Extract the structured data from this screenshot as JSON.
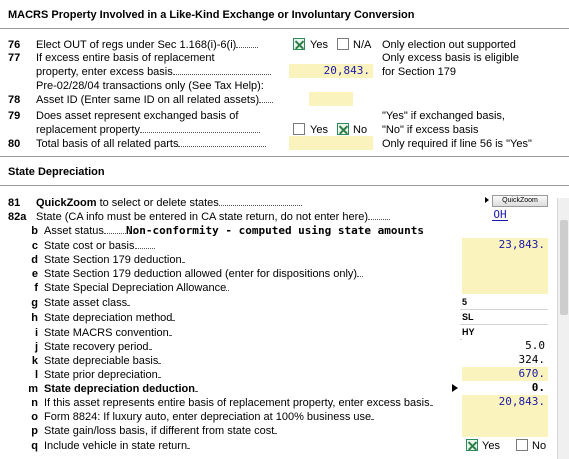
{
  "section1": {
    "title": "MACRS Property Involved in a Like-Kind Exchange or Involuntary Conversion",
    "rows": [
      {
        "num": "76",
        "label": "Elect OUT of regs under Sec 1.168(i)-6(i)",
        "yes": "Yes",
        "na": "N/A",
        "note": "Only election out supported"
      },
      {
        "num": "77",
        "label1": "If excess entire basis of replacement",
        "label2": "property, enter excess basis",
        "value": "20,843.",
        "note1": "Only excess basis is eligible",
        "note2": "for Section 179"
      },
      {
        "label": "Pre-02/28/04 transactions only (See Tax Help):"
      },
      {
        "num": "78",
        "label": "Asset ID (Enter same ID on all related assets)",
        "value": ""
      },
      {
        "num": "79",
        "label1": "Does asset represent exchanged basis of",
        "label2": "replacement property",
        "yes": "Yes",
        "no": "No",
        "note1": "\"Yes\" if exchanged basis,",
        "note2": "\"No\" if excess basis"
      },
      {
        "num": "80",
        "label": "Total basis of all related parts",
        "value": "",
        "note": "Only required if line 56 is \"Yes\""
      }
    ]
  },
  "section2": {
    "title": "State Depreciation",
    "quickzoom": {
      "num": "81",
      "label_bold": "QuickZoom",
      "label_rest": " to select or delete states",
      "button": "QuickZoom"
    },
    "state_row": {
      "num": "82a",
      "label": "State (CA info must be entered in CA state return, do not enter here)",
      "value": "OH"
    },
    "b_row": {
      "letter": "b",
      "label": "Asset status",
      "value": "Non-conformity - computed using state amounts"
    },
    "rows": [
      {
        "letter": "c",
        "label": "State cost or basis",
        "value": "23,843.",
        "style": "blue"
      },
      {
        "letter": "d",
        "label": "State Section 179 deduction",
        "value": "",
        "style": "yellow"
      },
      {
        "letter": "e",
        "label": "State Section 179 deduction allowed (enter for dispositions only)",
        "value": "",
        "style": "yellow"
      },
      {
        "letter": "f",
        "label": "State Special Depreciation Allowance",
        "value": "",
        "style": "yellow"
      },
      {
        "letter": "g",
        "label": "State asset class",
        "value": "5",
        "style": "left"
      },
      {
        "letter": "h",
        "label": "State depreciation method",
        "value": "SL",
        "style": "left"
      },
      {
        "letter": "i",
        "label": "State MACRS convention",
        "value": "HY",
        "style": "left"
      },
      {
        "letter": "j",
        "label": "State recovery period",
        "value": "5.0",
        "style": "white"
      },
      {
        "letter": "k",
        "label": "State depreciable basis",
        "value": "324.",
        "style": "white"
      },
      {
        "letter": "l",
        "label": "State prior depreciation",
        "value": "670.",
        "style": "blue"
      },
      {
        "letter": "m",
        "label": "State depreciation deduction",
        "value": "0.",
        "style": "white-bold"
      },
      {
        "letter": "n",
        "label": "If this asset represents entire basis of replacement property, enter excess basis",
        "value": "20,843.",
        "style": "blue"
      },
      {
        "letter": "o",
        "label": "Form 8824: If luxury auto, enter depreciation at 100% business use",
        "value": "",
        "style": "yellow"
      },
      {
        "letter": "p",
        "label": "State gain/loss basis, if different from state cost",
        "value": "",
        "style": "yellow"
      },
      {
        "letter": "q",
        "label": "Include vehicle in state return",
        "yes": "Yes",
        "no": "No"
      }
    ]
  }
}
